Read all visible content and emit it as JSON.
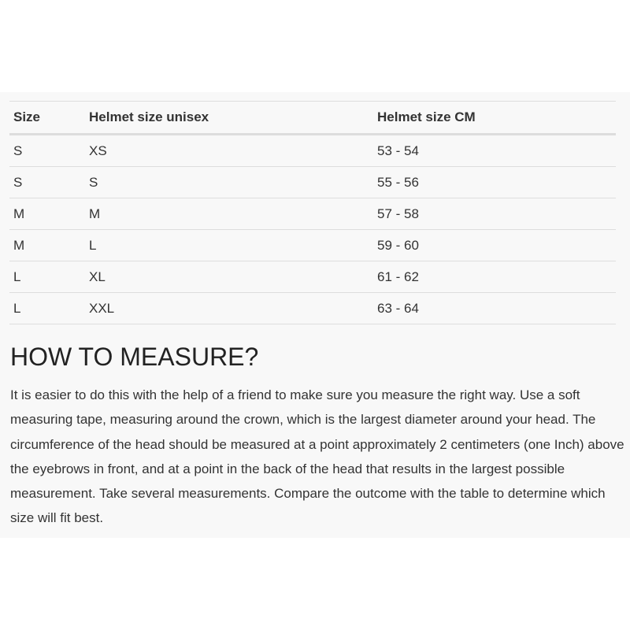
{
  "table": {
    "headers": [
      "Size",
      "Helmet size unisex",
      "Helmet size CM"
    ],
    "rows": [
      [
        "S",
        "XS",
        "53 - 54"
      ],
      [
        "S",
        "S",
        "55 - 56"
      ],
      [
        "M",
        "M",
        "57 - 58"
      ],
      [
        "M",
        "L",
        "59 - 60"
      ],
      [
        "L",
        "XL",
        "61 - 62"
      ],
      [
        "L",
        "XXL",
        "63 - 64"
      ]
    ]
  },
  "measure": {
    "heading": "HOW TO MEASURE?",
    "text": "It is easier to do this with the help of a friend to make sure you measure the right way. Use a soft measuring tape, measuring around the crown, which is the largest diameter around your head. The circumference of the head should be measured at a point approximately 2 centimeters (one Inch) above the eyebrows in front, and at a point in the back of the head that results in the largest possible measurement. Take several measurements. Compare the outcome with the table to determine which size will fit best."
  }
}
